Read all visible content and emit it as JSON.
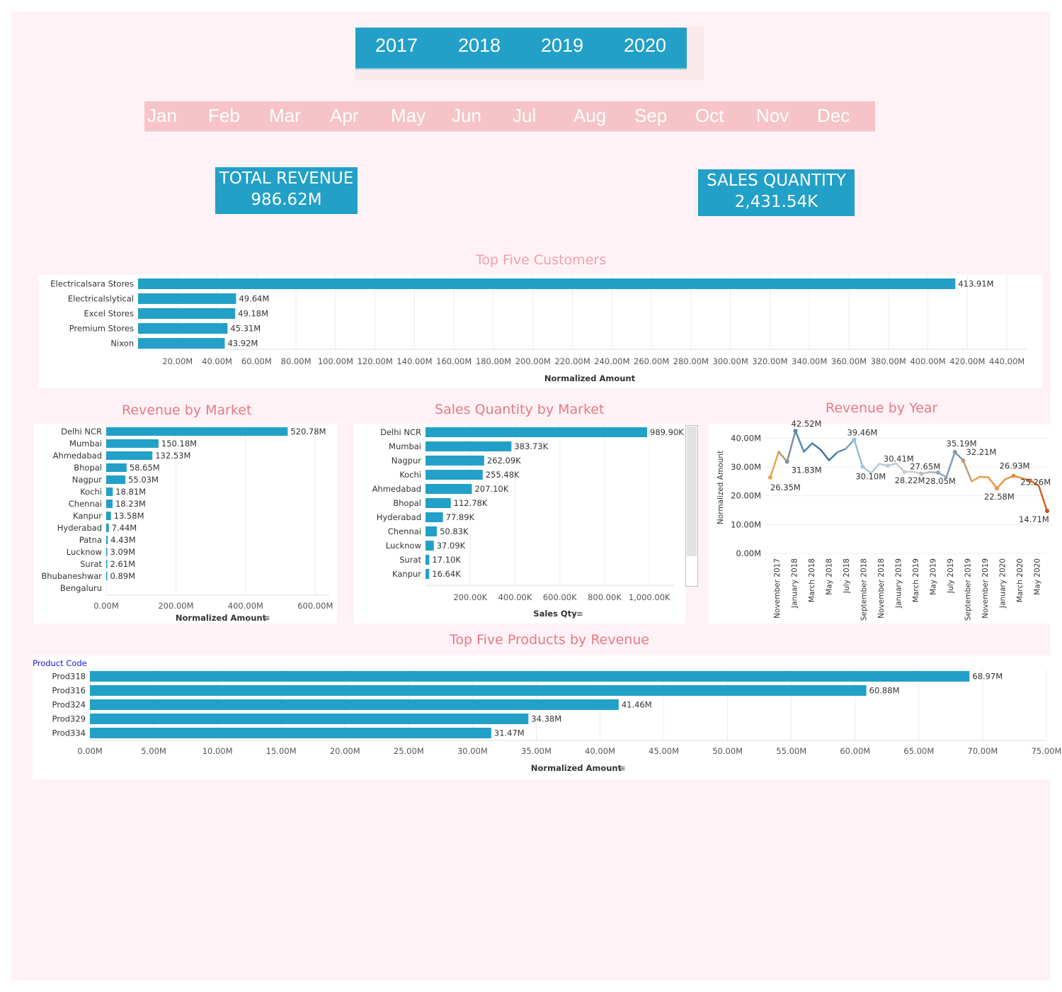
{
  "colors": {
    "bar": "#22a0c8",
    "title": "#e67a84",
    "accent": "#22a0c8"
  },
  "years": [
    "2017",
    "2018",
    "2019",
    "2020"
  ],
  "months": [
    "Jan",
    "Feb",
    "Mar",
    "Apr",
    "May",
    "Jun",
    "Jul",
    "Aug",
    "Sep",
    "Oct",
    "Nov",
    "Dec"
  ],
  "kpi": {
    "revenue": {
      "label": "TOTAL REVENUE",
      "value": "986.62M"
    },
    "quantity": {
      "label": "SALES QUANTITY",
      "value": "2,431.54K"
    }
  },
  "chart_data": [
    {
      "id": "top-customers",
      "type": "bar",
      "orientation": "horizontal",
      "title": "Top Five Customers",
      "xlabel": "Normalized Amount",
      "categories": [
        "Electricalsara Stores",
        "Electricalslytical",
        "Excel Stores",
        "Premium Stores",
        "Nixon"
      ],
      "values": [
        413.91,
        49.64,
        49.18,
        45.31,
        43.92
      ],
      "labels": [
        "413.91M",
        "49.64M",
        "49.18M",
        "45.31M",
        "43.92M"
      ],
      "ticks": [
        20,
        40,
        60,
        80,
        100,
        120,
        140,
        160,
        180,
        200,
        220,
        240,
        260,
        280,
        300,
        320,
        340,
        360,
        380,
        400,
        420,
        440
      ],
      "tick_labels": [
        "20.00M",
        "40.00M",
        "60.00M",
        "80.00M",
        "100.00M",
        "120.00M",
        "140.00M",
        "160.00M",
        "180.00M",
        "200.00M",
        "220.00M",
        "240.00M",
        "260.00M",
        "280.00M",
        "300.00M",
        "320.00M",
        "340.00M",
        "360.00M",
        "380.00M",
        "400.00M",
        "420.00M",
        "440.00M"
      ],
      "xlim": [
        0,
        450
      ],
      "grid": true
    },
    {
      "id": "revenue-market",
      "type": "bar",
      "orientation": "horizontal",
      "title": "Revenue by Market",
      "xlabel": "Normalized Amount",
      "categories": [
        "Delhi NCR",
        "Mumbai",
        "Ahmedabad",
        "Bhopal",
        "Nagpur",
        "Kochi",
        "Chennai",
        "Kanpur",
        "Hyderabad",
        "Patna",
        "Lucknow",
        "Surat",
        "Bhubaneshwar",
        "Bengaluru"
      ],
      "values": [
        520.78,
        150.18,
        132.53,
        58.65,
        55.03,
        18.81,
        18.23,
        13.58,
        7.44,
        4.43,
        3.09,
        2.61,
        0.89,
        0
      ],
      "labels": [
        "520.78M",
        "150.18M",
        "132.53M",
        "58.65M",
        "55.03M",
        "18.81M",
        "18.23M",
        "13.58M",
        "7.44M",
        "4.43M",
        "3.09M",
        "2.61M",
        "0.89M",
        ""
      ],
      "ticks": [
        0,
        200,
        400,
        600
      ],
      "tick_labels": [
        "0.00M",
        "200.00M",
        "400.00M",
        "600.00M"
      ],
      "xlim": [
        0,
        640
      ],
      "grid": true
    },
    {
      "id": "qty-market",
      "type": "bar",
      "orientation": "horizontal",
      "title": "Sales Quantity by Market",
      "xlabel": "Sales Qty",
      "categories": [
        "Delhi NCR",
        "Mumbai",
        "Nagpur",
        "Kochi",
        "Ahmedabad",
        "Bhopal",
        "Hyderabad",
        "Chennai",
        "Lucknow",
        "Surat",
        "Kanpur"
      ],
      "values": [
        989.9,
        383.73,
        262.09,
        255.48,
        207.1,
        112.78,
        77.89,
        50.83,
        37.09,
        17.1,
        16.64
      ],
      "labels": [
        "989.90K",
        "383.73K",
        "262.09K",
        "255.48K",
        "207.10K",
        "112.78K",
        "77.89K",
        "50.83K",
        "37.09K",
        "17.10K",
        "16.64K"
      ],
      "ticks": [
        200,
        400,
        600,
        800,
        1000
      ],
      "tick_labels": [
        "200.00K",
        "400.00K",
        "600.00K",
        "800.00K",
        "1,000.00K"
      ],
      "xlim": [
        0,
        1110
      ],
      "grid": true
    },
    {
      "id": "revenue-year",
      "type": "line",
      "title": "Revenue by Year",
      "ylabel": "Normalized Amount",
      "values": [
        26.35,
        35.3,
        31.83,
        42.52,
        35.3,
        38.2,
        36.0,
        32.3,
        35.1,
        36.3,
        39.46,
        30.1,
        27.9,
        31.1,
        30.41,
        31.2,
        28.22,
        28.4,
        27.65,
        28.2,
        28.05,
        26.5,
        35.19,
        32.21,
        25.0,
        26.6,
        26.4,
        22.58,
        25.7,
        26.93,
        26.1,
        25.26,
        23.5,
        14.71
      ],
      "point_labels": {
        "0": "26.35M",
        "2": "31.83M",
        "3": "42.52M",
        "10": "39.46M",
        "11": "30.10M",
        "14": "30.41M",
        "16": "28.22M",
        "18": "27.65M",
        "20": "28.05M",
        "22": "35.19M",
        "23": "32.21M",
        "27": "22.58M",
        "29": "26.93M",
        "31": "25.26M",
        "33": "14.71M"
      },
      "ticks": [
        0,
        10,
        20,
        30,
        40
      ],
      "tick_labels": [
        "0.00M",
        "10.00M",
        "20.00M",
        "30.00M",
        "40.00M"
      ],
      "x_labels": [
        "November 2017",
        "January 2018",
        "March 2018",
        "May 2018",
        "July 2018",
        "September 2018",
        "November 2018",
        "January 2019",
        "March 2019",
        "May 2019",
        "July 2019",
        "September 2019",
        "November 2019",
        "January 2020",
        "March 2020",
        "May 2020"
      ],
      "ylim": [
        0,
        45
      ],
      "color_scale": [
        "#e9a24c",
        "#c9c6c0",
        "#3b6f9c",
        "#c8511b"
      ]
    },
    {
      "id": "top-products",
      "type": "bar",
      "orientation": "horizontal",
      "title": "Top Five Products by Revenue",
      "xlabel": "Normalized Amount",
      "legend_label": "Product Code",
      "categories": [
        "Prod318",
        "Prod316",
        "Prod324",
        "Prod329",
        "Prod334"
      ],
      "values": [
        68.97,
        60.88,
        41.46,
        34.38,
        31.47
      ],
      "labels": [
        "68.97M",
        "60.88M",
        "41.46M",
        "34.38M",
        "31.47M"
      ],
      "ticks": [
        0,
        5,
        10,
        15,
        20,
        25,
        30,
        35,
        40,
        45,
        50,
        55,
        60,
        65,
        70,
        75
      ],
      "tick_labels": [
        "0.00M",
        "5.00M",
        "10.00M",
        "15.00M",
        "20.00M",
        "25.00M",
        "30.00M",
        "35.00M",
        "40.00M",
        "45.00M",
        "50.00M",
        "55.00M",
        "60.00M",
        "65.00M",
        "70.00M",
        "75.00M"
      ],
      "xlim": [
        0,
        75
      ],
      "grid": true
    }
  ]
}
